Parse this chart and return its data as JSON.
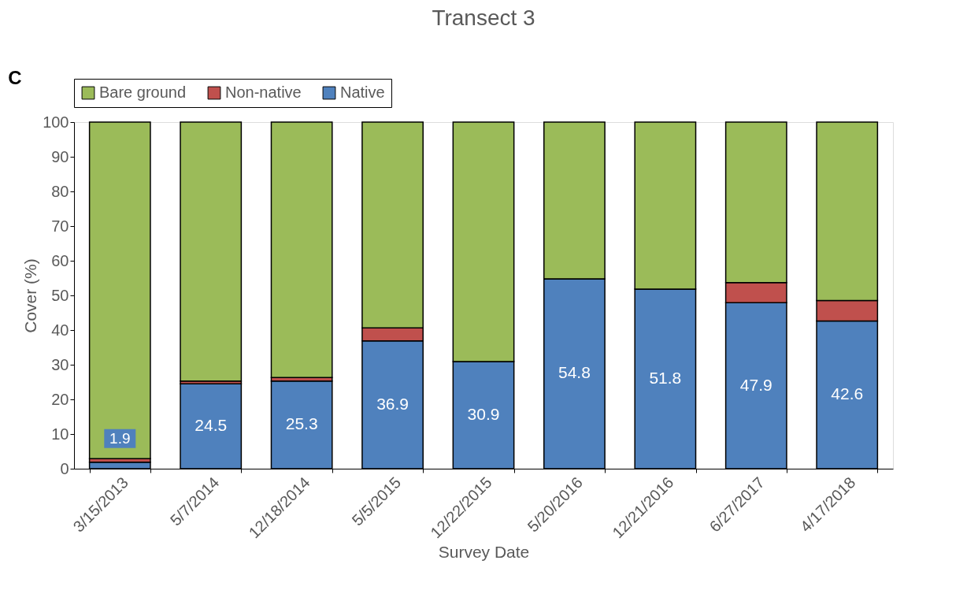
{
  "chart_data": {
    "type": "bar",
    "title": "Transect 3",
    "xlabel": "Survey Date",
    "ylabel": "Cover (%)",
    "stacked": true,
    "categories": [
      "3/15/2013",
      "5/7/2014",
      "12/18/2014",
      "5/5/2015",
      "12/22/2015",
      "5/20/2016",
      "12/21/2016",
      "6/27/2017",
      "4/17/2018"
    ],
    "series": [
      {
        "name": "Native",
        "color": "#4f81bd",
        "values": [
          1.9,
          24.5,
          25.3,
          36.9,
          30.9,
          54.8,
          51.8,
          47.9,
          42.6
        ],
        "value_labels": [
          "1.9",
          "24.5",
          "25.3",
          "36.9",
          "30.9",
          "54.8",
          "51.8",
          "47.9",
          "42.6"
        ]
      },
      {
        "name": "Non-native",
        "color": "#c0504d",
        "values": [
          1.0,
          0.8,
          1.0,
          3.7,
          0.0,
          0.0,
          0.0,
          5.8,
          5.9
        ]
      },
      {
        "name": "Bare ground",
        "color": "#9bbb59",
        "values": [
          97.1,
          74.7,
          73.7,
          59.4,
          69.1,
          45.2,
          48.2,
          46.3,
          51.5
        ]
      }
    ],
    "ylim": [
      0,
      100
    ],
    "yticks": [
      0,
      10,
      20,
      30,
      40,
      50,
      60,
      70,
      80,
      90,
      100
    ],
    "grid": false,
    "legend": "top left",
    "annotations": [
      "C"
    ]
  }
}
